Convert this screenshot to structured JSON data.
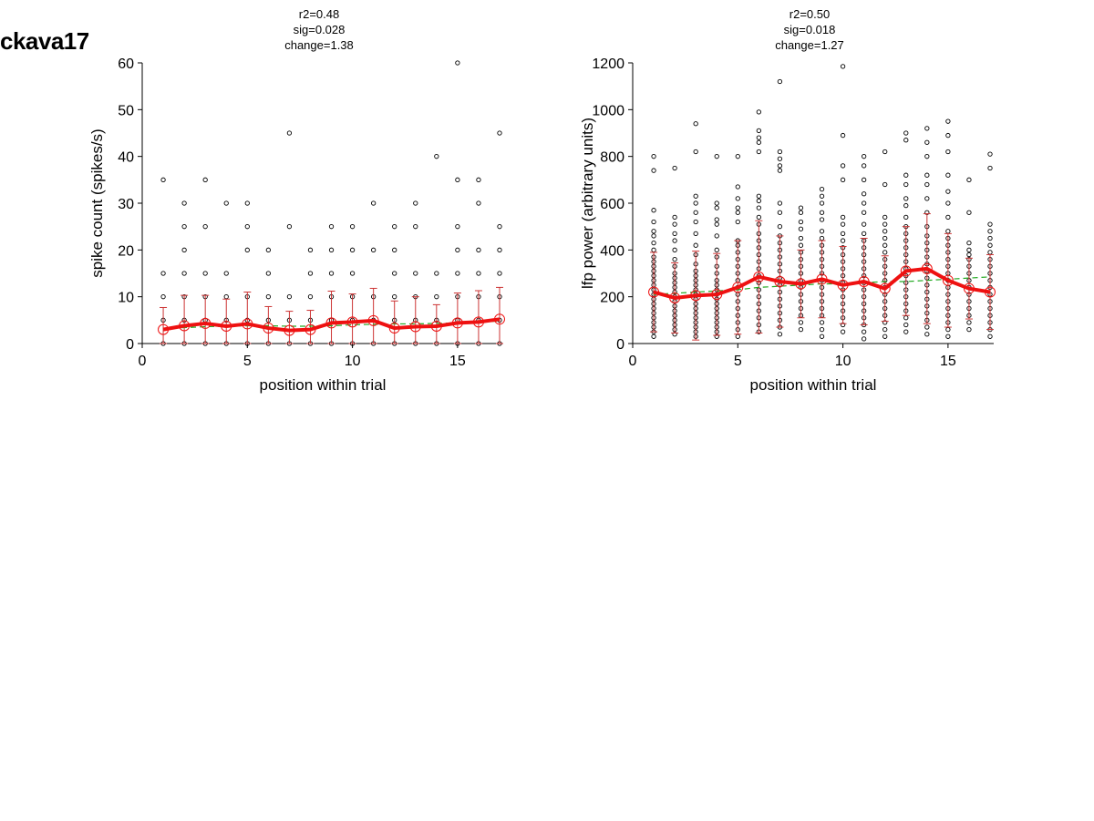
{
  "figure": {
    "label": "ckava17"
  },
  "chart_data": [
    {
      "type": "scatter",
      "title": [
        "r2=0.48",
        "sig=0.028",
        "change=1.38"
      ],
      "xlabel": "position within trial",
      "ylabel": "spike count (spikes/s)",
      "xlim": [
        0,
        17
      ],
      "ylim": [
        0,
        60
      ],
      "xticks": [
        0,
        5,
        10,
        15
      ],
      "yticks": [
        0,
        10,
        20,
        30,
        40,
        50,
        60
      ],
      "colors": {
        "points": "#000000",
        "mean": "#ee1111",
        "errorbar": "#cc3333",
        "fit": "#22aa22"
      },
      "points": [
        {
          "x": 1,
          "y": [
            0,
            5,
            10,
            15,
            35
          ]
        },
        {
          "x": 2,
          "y": [
            0,
            5,
            10,
            15,
            20,
            25,
            30
          ]
        },
        {
          "x": 3,
          "y": [
            0,
            5,
            10,
            15,
            25,
            35
          ]
        },
        {
          "x": 4,
          "y": [
            0,
            5,
            10,
            15,
            30
          ]
        },
        {
          "x": 5,
          "y": [
            0,
            5,
            10,
            20,
            25,
            30
          ]
        },
        {
          "x": 6,
          "y": [
            0,
            5,
            10,
            15,
            20
          ]
        },
        {
          "x": 7,
          "y": [
            0,
            5,
            10,
            25,
            45
          ]
        },
        {
          "x": 8,
          "y": [
            0,
            5,
            10,
            15,
            20
          ]
        },
        {
          "x": 9,
          "y": [
            0,
            5,
            10,
            15,
            20,
            25
          ]
        },
        {
          "x": 10,
          "y": [
            0,
            5,
            10,
            15,
            20,
            25
          ]
        },
        {
          "x": 11,
          "y": [
            0,
            5,
            10,
            20,
            30
          ]
        },
        {
          "x": 12,
          "y": [
            0,
            5,
            10,
            15,
            20,
            25
          ]
        },
        {
          "x": 13,
          "y": [
            0,
            5,
            10,
            15,
            25,
            30
          ]
        },
        {
          "x": 14,
          "y": [
            0,
            5,
            10,
            15,
            40
          ]
        },
        {
          "x": 15,
          "y": [
            0,
            5,
            10,
            15,
            20,
            25,
            35,
            60
          ]
        },
        {
          "x": 16,
          "y": [
            0,
            5,
            10,
            15,
            20,
            30,
            35
          ]
        },
        {
          "x": 17,
          "y": [
            0,
            5,
            10,
            15,
            20,
            25,
            45
          ]
        }
      ],
      "mean": [
        3.0,
        3.8,
        4.3,
        3.7,
        4.2,
        3.3,
        2.8,
        3.0,
        4.4,
        4.6,
        4.9,
        3.3,
        3.6,
        3.7,
        4.4,
        4.6,
        5.2
      ],
      "err_hi": [
        7.7,
        10.3,
        10.3,
        9.5,
        11.0,
        7.9,
        6.9,
        7.1,
        11.2,
        10.6,
        11.8,
        9.1,
        10.0,
        8.3,
        10.8,
        11.3,
        12.0
      ],
      "fit": [
        3.2,
        3.4,
        3.6,
        3.7,
        3.8,
        3.8,
        3.7,
        3.7,
        3.8,
        4.0,
        4.1,
        4.2,
        4.2,
        4.3,
        4.4,
        4.6,
        4.8
      ]
    },
    {
      "type": "scatter",
      "title": [
        "r2=0.50",
        "sig=0.018",
        "change=1.27"
      ],
      "xlabel": "position within trial",
      "ylabel": "lfp power (arbitrary units)",
      "xlim": [
        0,
        17
      ],
      "ylim": [
        0,
        1200
      ],
      "xticks": [
        0,
        5,
        10,
        15
      ],
      "yticks": [
        0,
        200,
        400,
        600,
        800,
        1000,
        1200
      ],
      "colors": {
        "points": "#000000",
        "mean": "#ee1111",
        "errorbar": "#cc3333",
        "fit": "#22aa22"
      },
      "points": [
        {
          "x": 1,
          "y": [
            30,
            50,
            70,
            90,
            110,
            130,
            150,
            170,
            190,
            210,
            230,
            250,
            270,
            290,
            310,
            330,
            350,
            370,
            400,
            430,
            460,
            480,
            520,
            570,
            740,
            800
          ]
        },
        {
          "x": 2,
          "y": [
            40,
            60,
            80,
            100,
            120,
            140,
            160,
            180,
            200,
            220,
            240,
            260,
            280,
            300,
            330,
            360,
            400,
            440,
            470,
            510,
            540,
            750
          ]
        },
        {
          "x": 3,
          "y": [
            30,
            50,
            70,
            90,
            110,
            130,
            150,
            170,
            190,
            210,
            230,
            250,
            270,
            290,
            310,
            340,
            380,
            420,
            470,
            520,
            560,
            600,
            630,
            820,
            940
          ]
        },
        {
          "x": 4,
          "y": [
            30,
            50,
            70,
            90,
            110,
            130,
            150,
            170,
            190,
            210,
            230,
            250,
            270,
            300,
            330,
            370,
            400,
            460,
            510,
            530,
            580,
            600,
            800
          ]
        },
        {
          "x": 5,
          "y": [
            30,
            60,
            90,
            120,
            150,
            180,
            210,
            240,
            270,
            300,
            330,
            360,
            390,
            420,
            440,
            520,
            560,
            580,
            620,
            670,
            800
          ]
        },
        {
          "x": 6,
          "y": [
            50,
            80,
            110,
            140,
            170,
            200,
            230,
            260,
            290,
            320,
            350,
            380,
            410,
            440,
            470,
            510,
            540,
            580,
            610,
            630,
            820,
            860,
            880,
            910,
            990
          ]
        },
        {
          "x": 7,
          "y": [
            40,
            70,
            100,
            130,
            160,
            190,
            220,
            250,
            280,
            310,
            340,
            370,
            400,
            430,
            460,
            500,
            560,
            600,
            740,
            760,
            790,
            820,
            1120
          ]
        },
        {
          "x": 8,
          "y": [
            60,
            90,
            120,
            150,
            180,
            210,
            240,
            270,
            300,
            330,
            360,
            390,
            420,
            450,
            490,
            520,
            560,
            580
          ]
        },
        {
          "x": 9,
          "y": [
            30,
            60,
            90,
            120,
            150,
            180,
            210,
            240,
            270,
            300,
            330,
            360,
            390,
            420,
            450,
            480,
            530,
            560,
            600,
            630,
            660
          ]
        },
        {
          "x": 10,
          "y": [
            50,
            80,
            110,
            140,
            170,
            200,
            230,
            260,
            290,
            320,
            350,
            380,
            410,
            440,
            470,
            510,
            540,
            700,
            760,
            890,
            1185
          ]
        },
        {
          "x": 11,
          "y": [
            20,
            50,
            80,
            110,
            140,
            170,
            200,
            230,
            260,
            290,
            320,
            350,
            380,
            410,
            440,
            470,
            510,
            560,
            600,
            640,
            700,
            760,
            800
          ]
        },
        {
          "x": 12,
          "y": [
            30,
            60,
            90,
            120,
            150,
            180,
            210,
            240,
            270,
            300,
            330,
            360,
            390,
            420,
            450,
            480,
            510,
            540,
            680,
            820
          ]
        },
        {
          "x": 13,
          "y": [
            50,
            80,
            110,
            140,
            170,
            200,
            230,
            260,
            290,
            320,
            350,
            380,
            410,
            440,
            470,
            500,
            540,
            590,
            620,
            680,
            720,
            870,
            900
          ]
        },
        {
          "x": 14,
          "y": [
            40,
            70,
            100,
            130,
            160,
            190,
            220,
            250,
            280,
            310,
            340,
            370,
            400,
            430,
            460,
            500,
            560,
            620,
            680,
            720,
            800,
            860,
            920
          ]
        },
        {
          "x": 15,
          "y": [
            30,
            60,
            90,
            120,
            150,
            180,
            210,
            240,
            270,
            300,
            330,
            360,
            390,
            420,
            450,
            480,
            540,
            600,
            650,
            720,
            820,
            890,
            950
          ]
        },
        {
          "x": 16,
          "y": [
            60,
            90,
            120,
            150,
            180,
            210,
            240,
            270,
            300,
            330,
            360,
            380,
            400,
            430,
            560,
            700
          ]
        },
        {
          "x": 17,
          "y": [
            30,
            60,
            90,
            120,
            150,
            180,
            210,
            240,
            270,
            300,
            330,
            360,
            390,
            420,
            450,
            480,
            510,
            750,
            810
          ]
        }
      ],
      "mean": [
        220,
        195,
        205,
        210,
        240,
        285,
        265,
        255,
        275,
        250,
        265,
        235,
        310,
        320,
        270,
        235,
        220
      ],
      "err_hi": [
        390,
        345,
        395,
        385,
        440,
        525,
        460,
        400,
        440,
        415,
        450,
        375,
        500,
        555,
        470,
        365,
        380
      ],
      "fit": [
        210,
        215,
        220,
        225,
        230,
        240,
        245,
        250,
        255,
        255,
        260,
        265,
        265,
        270,
        275,
        280,
        285
      ]
    }
  ]
}
